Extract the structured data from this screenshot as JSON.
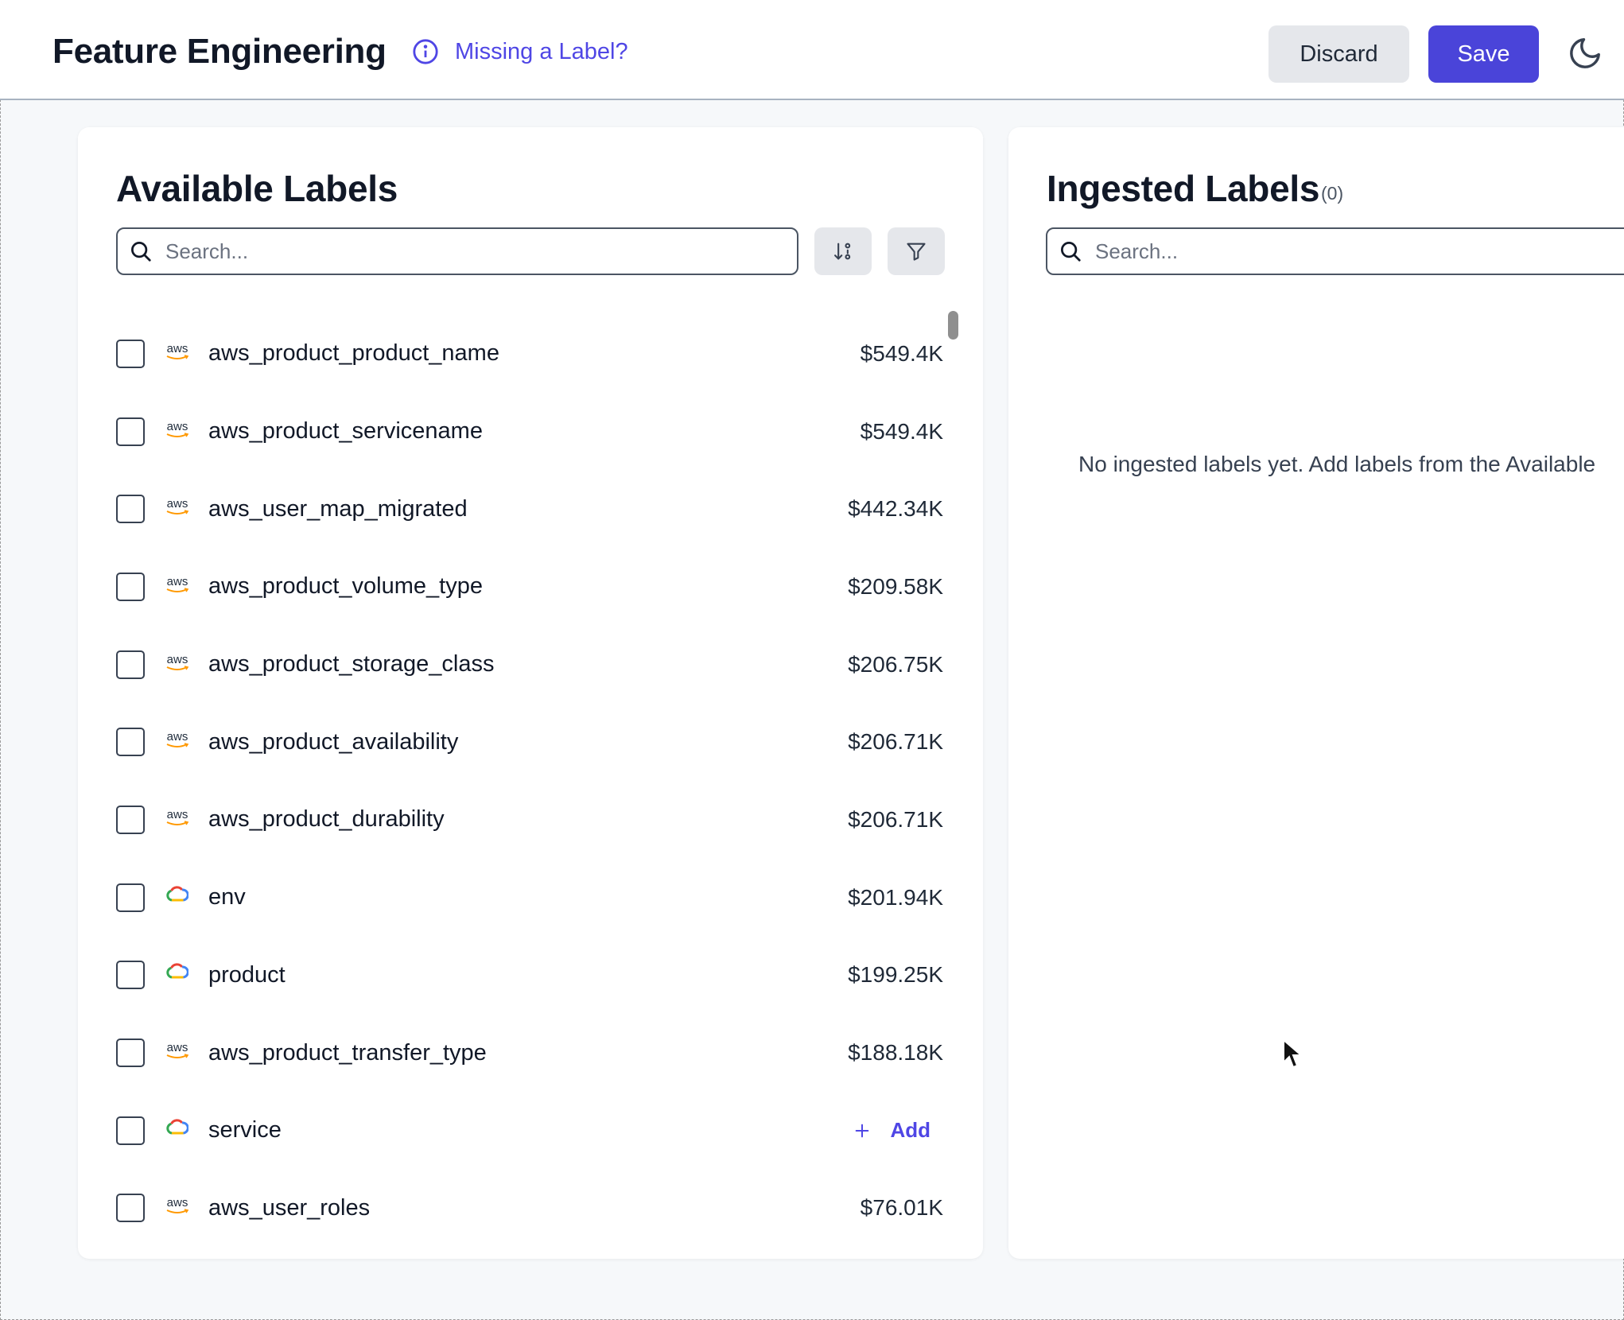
{
  "header": {
    "title": "Feature Engineering",
    "missing_label_link": "Missing a Label?",
    "discard_label": "Discard",
    "save_label": "Save",
    "theme_icon": "moon-icon"
  },
  "available": {
    "title": "Available Labels",
    "search_placeholder": "Search...",
    "sort_icon": "sort-icon",
    "filter_icon": "filter-icon",
    "rows": [
      {
        "provider": "aws",
        "name": "aws_product_product_name",
        "cost": "$549.4K"
      },
      {
        "provider": "aws",
        "name": "aws_product_servicename",
        "cost": "$549.4K"
      },
      {
        "provider": "aws",
        "name": "aws_user_map_migrated",
        "cost": "$442.34K"
      },
      {
        "provider": "aws",
        "name": "aws_product_volume_type",
        "cost": "$209.58K"
      },
      {
        "provider": "aws",
        "name": "aws_product_storage_class",
        "cost": "$206.75K"
      },
      {
        "provider": "aws",
        "name": "aws_product_availability",
        "cost": "$206.71K"
      },
      {
        "provider": "aws",
        "name": "aws_product_durability",
        "cost": "$206.71K"
      },
      {
        "provider": "gcp",
        "name": "env",
        "cost": "$201.94K"
      },
      {
        "provider": "gcp",
        "name": "product",
        "cost": "$199.25K"
      },
      {
        "provider": "aws",
        "name": "aws_product_transfer_type",
        "cost": "$188.18K"
      },
      {
        "provider": "gcp",
        "name": "service",
        "cost": null,
        "action": "Add"
      },
      {
        "provider": "aws",
        "name": "aws_user_roles",
        "cost": "$76.01K"
      }
    ]
  },
  "ingested": {
    "title": "Ingested Labels",
    "count": "(0)",
    "search_placeholder": "Search...",
    "empty_text": "No ingested labels yet. Add labels from the Available"
  },
  "provider_logo_text": {
    "aws": "aws"
  },
  "colors": {
    "primary": "#4a44d9",
    "link": "#4f46e5",
    "background": "#f6f8fa"
  }
}
